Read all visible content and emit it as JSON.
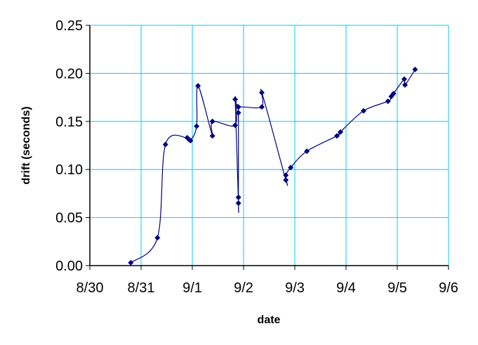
{
  "chart_data": {
    "type": "line",
    "title": "",
    "xlabel": "date",
    "ylabel": "drift (seconds)",
    "xlim": [
      "8/30",
      "9/6"
    ],
    "ylim": [
      0,
      0.25
    ],
    "x_ticks": [
      "8/30",
      "8/31",
      "9/1",
      "9/2",
      "9/3",
      "9/4",
      "9/5",
      "9/6"
    ],
    "y_ticks": [
      "0.00",
      "0.05",
      "0.10",
      "0.15",
      "0.20",
      "0.25"
    ],
    "grid": true,
    "smoothed": true,
    "marker": "diamond",
    "colors": {
      "series": "#000080",
      "grid": "#00ccff",
      "axis": "#000000"
    },
    "series": [
      {
        "points": [
          {
            "x": "8/30 19:10",
            "y": 0.003
          },
          {
            "x": "8/31 07:40",
            "y": 0.029
          },
          {
            "x": "8/31 11:25",
            "y": 0.126
          },
          {
            "x": "8/31 21:36",
            "y": 0.133
          },
          {
            "x": "8/31 22:30",
            "y": 0.131
          },
          {
            "x": "8/31 23:10",
            "y": 0.13
          },
          {
            "x": "9/1 02:00",
            "y": 0.145
          },
          {
            "x": "9/1 02:40",
            "y": 0.187
          },
          {
            "x": "9/1 09:25",
            "y": 0.135
          },
          {
            "x": "9/1 09:25",
            "y": 0.15
          },
          {
            "x": "9/1 20:04",
            "y": 0.146
          },
          {
            "x": "9/1 20:04",
            "y": 0.173
          },
          {
            "x": "9/1 21:36",
            "y": 0.065
          },
          {
            "x": "9/1 21:36",
            "y": 0.071
          },
          {
            "x": "9/1 21:36",
            "y": 0.159
          },
          {
            "x": "9/1 21:36",
            "y": 0.165
          },
          {
            "x": "9/2 08:33",
            "y": 0.165
          },
          {
            "x": "9/2 08:33",
            "y": 0.18
          },
          {
            "x": "9/2 19:48",
            "y": 0.089
          },
          {
            "x": "9/2 19:48",
            "y": 0.094
          },
          {
            "x": "9/2 22:04",
            "y": 0.102
          },
          {
            "x": "9/3 05:38",
            "y": 0.119
          },
          {
            "x": "9/3 19:45",
            "y": 0.135
          },
          {
            "x": "9/3 21:22",
            "y": 0.139
          },
          {
            "x": "9/4 08:13",
            "y": 0.161
          },
          {
            "x": "9/4 19:38",
            "y": 0.171
          },
          {
            "x": "9/4 21:10",
            "y": 0.176
          },
          {
            "x": "9/4 22:15",
            "y": 0.179
          },
          {
            "x": "9/5 03:17",
            "y": 0.194
          },
          {
            "x": "9/5 03:37",
            "y": 0.188
          },
          {
            "x": "9/5 08:21",
            "y": 0.204
          }
        ]
      }
    ]
  }
}
